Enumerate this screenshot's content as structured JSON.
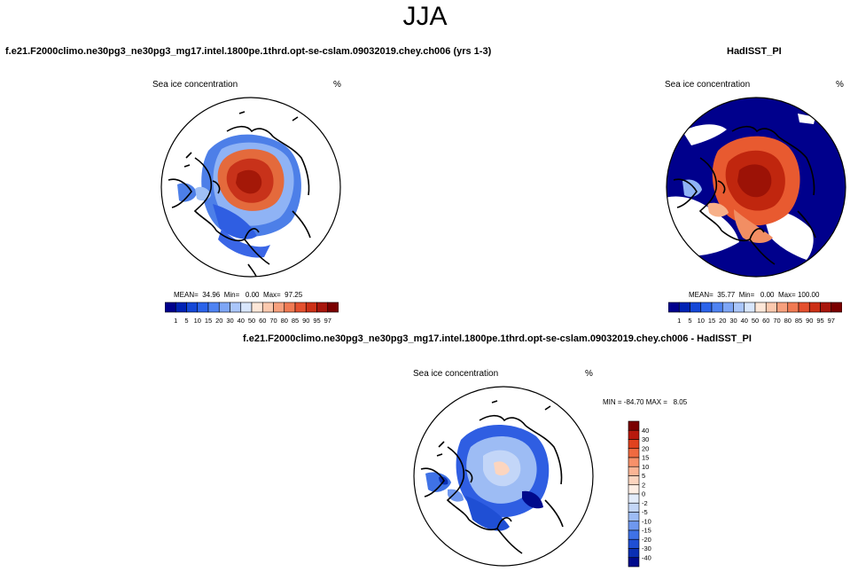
{
  "figure": {
    "season": "JJA"
  },
  "panels": [
    {
      "id": "model",
      "title": "f.e21.F2000climo.ne30pg3_ne30pg3_mg17.intel.1800pe.1thrd.opt-se-cslam.09032019.chey.ch006 (yrs 1-3)",
      "variable": "Sea ice concentration",
      "units": "%",
      "stats": "MEAN=  34.96  Min=   0.00  Max=  97.25"
    },
    {
      "id": "obs",
      "title": "HadISST_PI",
      "variable": "Sea ice concentration",
      "units": "%",
      "stats": "MEAN=  35.77  Min=   0.00  Max= 100.00"
    },
    {
      "id": "diff",
      "title": "f.e21.F2000climo.ne30pg3_ne30pg3_mg17.intel.1800pe.1thrd.opt-se-cslam.09032019.chey.ch006 - HadISST_PI",
      "variable": "Sea ice concentration",
      "units": "%",
      "stats": "MIN = -84.70 MAX =   8.05"
    }
  ],
  "colorbars": {
    "absolute": {
      "labels": [
        "1",
        "5",
        "10",
        "15",
        "20",
        "30",
        "40",
        "50",
        "60",
        "70",
        "80",
        "85",
        "90",
        "95",
        "97"
      ],
      "colors": [
        "#00008c",
        "#0022b4",
        "#1447d7",
        "#2b63ea",
        "#4f83f2",
        "#7ea6f6",
        "#aac6fa",
        "#d8e6fc",
        "#fde7d8",
        "#fbc9ae",
        "#f7a07d",
        "#f07a53",
        "#e4502e",
        "#cc3016",
        "#a8160c",
        "#7a0000"
      ]
    },
    "difference": {
      "labels": [
        "40",
        "30",
        "20",
        "15",
        "10",
        "5",
        "2",
        "0",
        "-2",
        "-5",
        "-10",
        "-15",
        "-20",
        "-30",
        "-40"
      ],
      "colors": [
        "#7a0000",
        "#b81a0e",
        "#e0421e",
        "#f06a40",
        "#f7916a",
        "#fbb595",
        "#fcd5bf",
        "#fdeee5",
        "#e3ecfb",
        "#c3d6f8",
        "#9dbcf4",
        "#6f98ef",
        "#3f72e6",
        "#1f4fd4",
        "#0a2fb4",
        "#000a8c"
      ]
    }
  }
}
